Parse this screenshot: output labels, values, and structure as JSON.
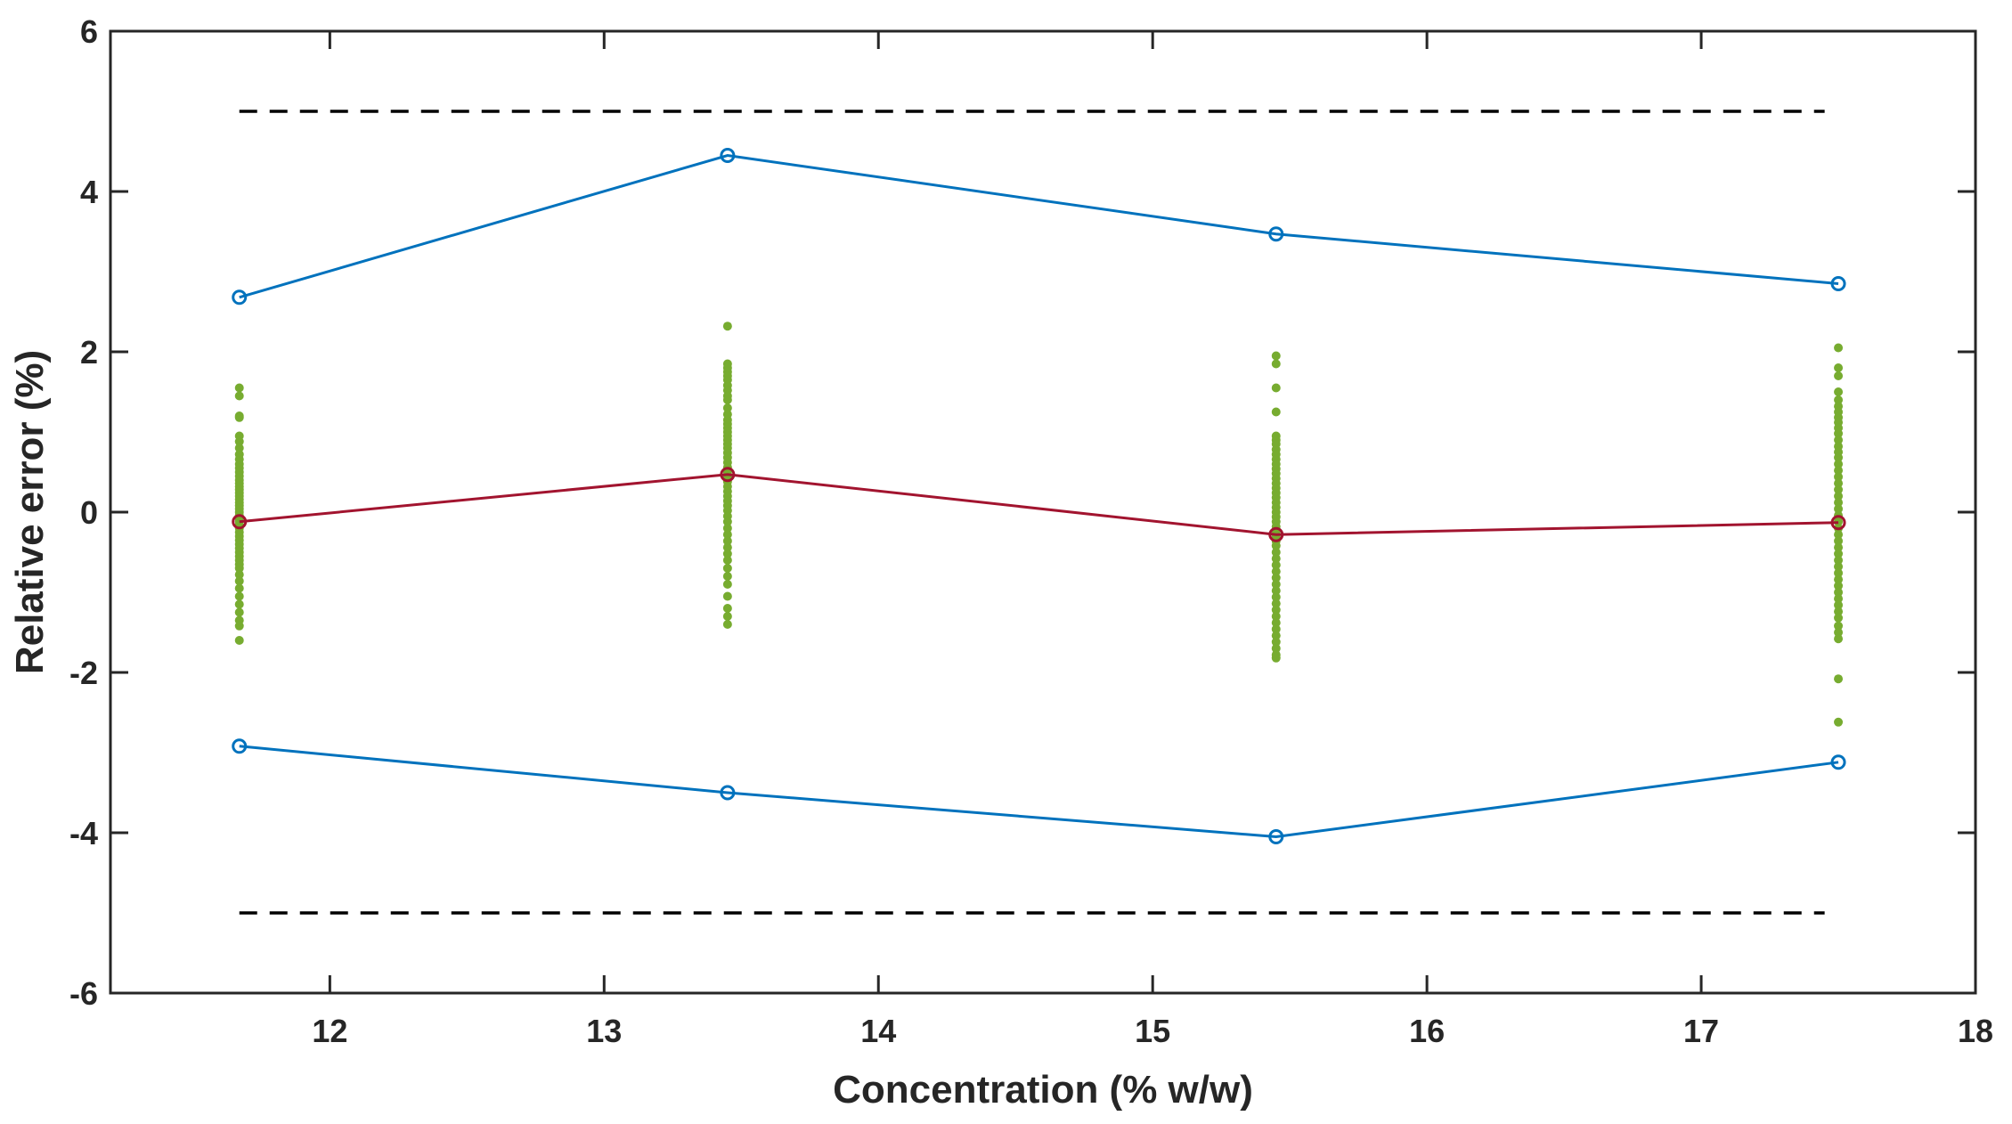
{
  "chart_data": {
    "type": "scatter",
    "title": "",
    "xlabel": "Concentration (% w/w)",
    "ylabel": "Relative error (%)",
    "xlim": [
      11.2,
      18
    ],
    "ylim": [
      -6,
      6
    ],
    "xticks": [
      12,
      13,
      14,
      15,
      16,
      17,
      18
    ],
    "yticks": [
      -6,
      -4,
      -2,
      0,
      2,
      4,
      6
    ],
    "grid": false,
    "legend": "none",
    "series": [
      {
        "style": "scatter",
        "color": "#77ac30",
        "groups": [
          {
            "x": 11.67,
            "y": [
              1.55,
              1.45,
              1.2,
              1.18,
              0.95,
              0.88,
              0.8,
              0.72,
              0.66,
              0.6,
              0.55,
              0.5,
              0.45,
              0.4,
              0.36,
              0.32,
              0.28,
              0.24,
              0.2,
              0.16,
              0.12,
              0.08,
              0.04,
              0.0,
              -0.04,
              -0.08,
              -0.12,
              -0.16,
              -0.2,
              -0.25,
              -0.3,
              -0.35,
              -0.4,
              -0.45,
              -0.5,
              -0.55,
              -0.6,
              -0.65,
              -0.7,
              -0.78,
              -0.86,
              -0.95,
              -1.05,
              -1.15,
              -1.25,
              -1.35,
              -1.42,
              -1.6
            ]
          },
          {
            "x": 13.45,
            "y": [
              2.32,
              1.85,
              1.8,
              1.75,
              1.7,
              1.65,
              1.58,
              1.52,
              1.45,
              1.4,
              1.3,
              1.22,
              1.15,
              1.1,
              1.05,
              1.0,
              0.95,
              0.9,
              0.85,
              0.8,
              0.74,
              0.68,
              0.62,
              0.56,
              0.5,
              0.44,
              0.38,
              0.32,
              0.26,
              0.2,
              0.14,
              0.08,
              0.02,
              -0.05,
              -0.12,
              -0.2,
              -0.28,
              -0.36,
              -0.44,
              -0.52,
              -0.6,
              -0.7,
              -0.8,
              -0.9,
              -1.05,
              -1.2,
              -1.3,
              -1.4
            ]
          },
          {
            "x": 15.45,
            "y": [
              1.95,
              1.85,
              1.55,
              1.25,
              0.95,
              0.9,
              0.85,
              0.78,
              0.72,
              0.66,
              0.6,
              0.54,
              0.48,
              0.42,
              0.36,
              0.3,
              0.24,
              0.18,
              0.12,
              0.06,
              0.0,
              -0.06,
              -0.12,
              -0.18,
              -0.24,
              -0.3,
              -0.36,
              -0.42,
              -0.5,
              -0.58,
              -0.66,
              -0.74,
              -0.82,
              -0.9,
              -0.98,
              -1.06,
              -1.14,
              -1.22,
              -1.3,
              -1.38,
              -1.46,
              -1.54,
              -1.62,
              -1.7,
              -1.78,
              -1.82
            ]
          },
          {
            "x": 17.5,
            "y": [
              2.05,
              1.8,
              1.7,
              1.5,
              1.4,
              1.32,
              1.25,
              1.18,
              1.12,
              1.05,
              0.98,
              0.9,
              0.82,
              0.75,
              0.68,
              0.6,
              0.52,
              0.44,
              0.36,
              0.28,
              0.2,
              0.12,
              0.04,
              -0.04,
              -0.12,
              -0.2,
              -0.28,
              -0.36,
              -0.44,
              -0.52,
              -0.6,
              -0.68,
              -0.76,
              -0.84,
              -0.92,
              -1.0,
              -1.08,
              -1.16,
              -1.24,
              -1.32,
              -1.42,
              -1.5,
              -1.58,
              -2.08,
              -2.62
            ]
          }
        ]
      },
      {
        "style": "line-marker",
        "color": "#a2142f",
        "x": [
          11.67,
          13.45,
          15.45,
          17.5
        ],
        "y": [
          -0.12,
          0.47,
          -0.28,
          -0.13
        ]
      },
      {
        "style": "line-marker",
        "color": "#0072bd",
        "x": [
          11.67,
          13.45,
          15.45,
          17.5
        ],
        "y": [
          2.68,
          4.45,
          3.47,
          2.85
        ]
      },
      {
        "style": "line-marker",
        "color": "#0072bd",
        "x": [
          11.67,
          13.45,
          15.45,
          17.5
        ],
        "y": [
          -2.92,
          -3.5,
          -4.05,
          -3.12
        ]
      },
      {
        "style": "dashed",
        "color": "#000000",
        "x": [
          11.67,
          17.45
        ],
        "y": [
          5,
          5
        ]
      },
      {
        "style": "dashed",
        "color": "#000000",
        "x": [
          11.67,
          17.45
        ],
        "y": [
          -5,
          -5
        ]
      }
    ]
  }
}
